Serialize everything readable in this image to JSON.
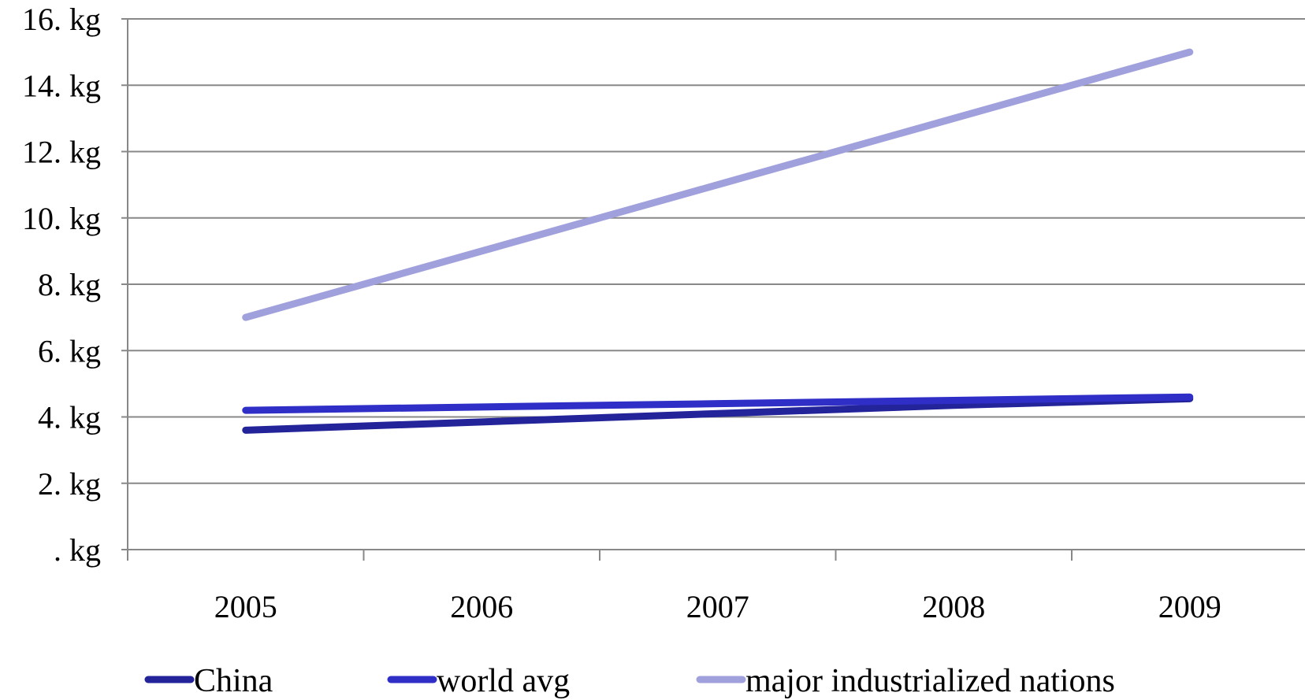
{
  "chart_data": {
    "type": "line",
    "categories": [
      "2005",
      "2006",
      "2007",
      "2008",
      "2009"
    ],
    "y_tick_labels": [
      ". kg",
      "2. kg",
      "4. kg",
      "6. kg",
      "8. kg",
      "10. kg",
      "12. kg",
      "14. kg",
      "16. kg"
    ],
    "y_ticks": [
      0,
      2,
      4,
      6,
      8,
      10,
      12,
      14,
      16
    ],
    "ylim": [
      0,
      16
    ],
    "grid": true,
    "legend_position": "bottom",
    "series": [
      {
        "name": "China",
        "color": "#23239a",
        "values": [
          3.6,
          3.85,
          4.1,
          4.35,
          4.55
        ]
      },
      {
        "name": "world avg",
        "color": "#2f2fc8",
        "values": [
          4.2,
          4.3,
          4.4,
          4.5,
          4.6
        ]
      },
      {
        "name": "major industrialized nations",
        "color": "#a0a0dc",
        "values": [
          7,
          9,
          11,
          13,
          15
        ]
      }
    ]
  }
}
